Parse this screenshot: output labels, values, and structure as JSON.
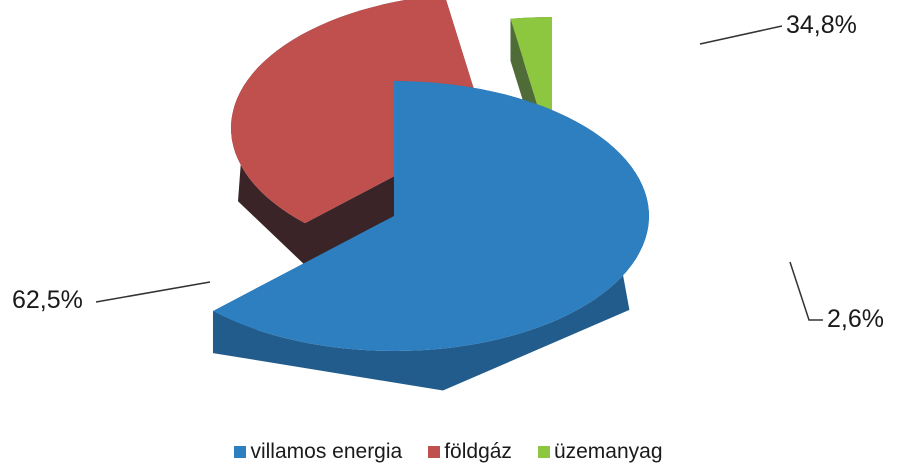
{
  "chart_data": {
    "type": "pie",
    "title": "",
    "style": "3d-exploded",
    "slices": [
      {
        "label": "villamos energia",
        "value": 62.5,
        "value_label": "62,5%",
        "color": "#2E7FC0",
        "side_color": "#215C8C"
      },
      {
        "label": "földgáz",
        "value": 34.8,
        "value_label": "34,8%",
        "color": "#C0504D",
        "side_color": "#3A2427"
      },
      {
        "label": "üzemanyag",
        "value": 2.6,
        "value_label": "2,6%",
        "color": "#8DC63F",
        "side_color": "#4E6B38"
      }
    ],
    "legend_position": "bottom"
  }
}
